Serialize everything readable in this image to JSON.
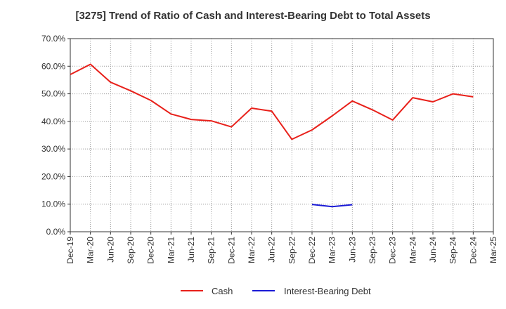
{
  "chart_data": {
    "type": "line",
    "title": "[3275]  Trend of Ratio of Cash and Interest-Bearing Debt to Total Assets",
    "xlabel": "",
    "ylabel": "",
    "ylim": [
      0,
      70
    ],
    "y_tick_labels": [
      "0.0%",
      "10.0%",
      "20.0%",
      "30.0%",
      "40.0%",
      "50.0%",
      "60.0%",
      "70.0%"
    ],
    "categories": [
      "Dec-19",
      "Mar-20",
      "Jun-20",
      "Sep-20",
      "Dec-20",
      "Mar-21",
      "Jun-21",
      "Sep-21",
      "Dec-21",
      "Mar-22",
      "Jun-22",
      "Sep-22",
      "Dec-22",
      "Mar-23",
      "Jun-23",
      "Sep-23",
      "Dec-23",
      "Mar-24",
      "Jun-24",
      "Sep-24",
      "Dec-24",
      "Mar-25"
    ],
    "grid": true,
    "legend_position": "bottom",
    "series": [
      {
        "name": "Cash",
        "color": "#e8201a",
        "values": [
          57.0,
          60.7,
          54.2,
          51.1,
          47.6,
          42.7,
          40.7,
          40.2,
          38.0,
          44.8,
          43.7,
          33.5,
          36.9,
          42.0,
          47.4,
          44.2,
          40.5,
          48.6,
          47.1,
          50.0,
          48.9,
          null
        ]
      },
      {
        "name": "Interest-Bearing Debt",
        "color": "#1a1ad6",
        "values": [
          null,
          null,
          null,
          null,
          null,
          null,
          null,
          null,
          null,
          null,
          null,
          null,
          9.9,
          9.1,
          9.8,
          null,
          null,
          null,
          null,
          null,
          null,
          null
        ]
      }
    ]
  }
}
